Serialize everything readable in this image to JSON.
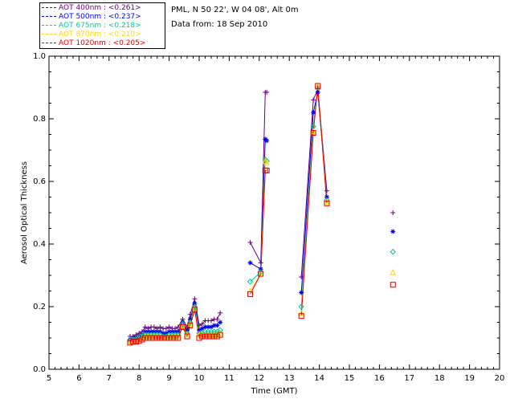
{
  "legend": [
    {
      "label": "AOT  400nm : <0.261>",
      "color": "#6a0080"
    },
    {
      "label": "AOT  500nm : <0.237>",
      "color": "#0000ee"
    },
    {
      "label": "AOT  675nm : <0.218>",
      "color": "#00c8a0"
    },
    {
      "label": "AOT  870nm : <0.210>",
      "color": "#ffd800"
    },
    {
      "label": "AOT 1020nm : <0.205>",
      "color": "#e00000"
    }
  ],
  "info": {
    "location": "PML, N 50 22', W 04 08', Alt 0m",
    "date": "Data from: 18 Sep 2010"
  },
  "chart_data": {
    "type": "line",
    "xlabel": "Time (GMT)",
    "ylabel": "Aerosol Optical Thickness",
    "xlim": [
      5,
      20
    ],
    "ylim": [
      0,
      1.0
    ],
    "xticks": [
      "5",
      "6",
      "7",
      "8",
      "9",
      "10",
      "11",
      "12",
      "13",
      "14",
      "15",
      "16",
      "17",
      "18",
      "19",
      "20"
    ],
    "yticks": [
      "0.0",
      "0.2",
      "0.4",
      "0.6",
      "0.8",
      "1.0"
    ],
    "x": [
      7.7,
      7.8,
      7.9,
      8.0,
      8.1,
      8.2,
      8.3,
      8.4,
      8.5,
      8.6,
      8.7,
      8.8,
      8.9,
      9.0,
      9.1,
      9.2,
      9.3,
      9.45,
      9.6,
      9.7,
      9.85,
      10.0,
      10.1,
      10.2,
      10.3,
      10.4,
      10.5,
      10.6,
      10.7,
      11.7,
      12.05,
      12.2,
      12.25,
      13.4,
      13.8,
      13.95,
      14.25,
      16.45
    ],
    "series": [
      {
        "name": "AOT  400nm",
        "marker": "plus",
        "values": [
          0.105,
          0.105,
          0.11,
          0.115,
          0.12,
          0.135,
          0.13,
          0.135,
          0.135,
          0.13,
          0.135,
          0.13,
          0.13,
          0.135,
          0.13,
          0.13,
          0.135,
          0.16,
          0.135,
          0.175,
          0.225,
          0.14,
          0.145,
          0.155,
          0.155,
          0.155,
          0.16,
          0.16,
          0.18,
          0.405,
          0.34,
          0.885,
          0.885,
          0.295,
          0.86,
          0.895,
          0.57,
          0.5
        ]
      },
      {
        "name": "AOT  500nm",
        "marker": "star",
        "values": [
          0.095,
          0.1,
          0.1,
          0.105,
          0.11,
          0.12,
          0.12,
          0.12,
          0.12,
          0.12,
          0.12,
          0.115,
          0.115,
          0.12,
          0.12,
          0.12,
          0.12,
          0.15,
          0.125,
          0.16,
          0.21,
          0.125,
          0.13,
          0.135,
          0.135,
          0.135,
          0.14,
          0.14,
          0.15,
          0.34,
          0.32,
          0.735,
          0.73,
          0.245,
          0.82,
          0.885,
          0.55,
          0.44
        ]
      },
      {
        "name": "AOT  675nm",
        "marker": "diamond",
        "values": [
          0.09,
          0.095,
          0.095,
          0.1,
          0.105,
          0.11,
          0.11,
          0.11,
          0.11,
          0.11,
          0.11,
          0.105,
          0.105,
          0.11,
          0.11,
          0.11,
          0.11,
          0.145,
          0.115,
          0.15,
          0.2,
          0.115,
          0.115,
          0.12,
          0.12,
          0.12,
          0.12,
          0.12,
          0.125,
          0.28,
          0.31,
          0.67,
          0.665,
          0.2,
          0.775,
          0.9,
          0.54,
          0.375
        ]
      },
      {
        "name": "AOT  870nm",
        "marker": "triangle",
        "values": [
          0.088,
          0.09,
          0.09,
          0.095,
          0.1,
          0.105,
          0.105,
          0.105,
          0.105,
          0.105,
          0.105,
          0.1,
          0.1,
          0.105,
          0.105,
          0.105,
          0.105,
          0.14,
          0.11,
          0.145,
          0.195,
          0.11,
          0.11,
          0.11,
          0.11,
          0.11,
          0.11,
          0.11,
          0.115,
          0.25,
          0.305,
          0.665,
          0.66,
          0.18,
          0.76,
          0.905,
          0.535,
          0.31
        ]
      },
      {
        "name": "AOT 1020nm",
        "marker": "square",
        "values": [
          0.085,
          0.088,
          0.088,
          0.09,
          0.095,
          0.1,
          0.1,
          0.1,
          0.1,
          0.1,
          0.1,
          0.1,
          0.1,
          0.1,
          0.1,
          0.1,
          0.1,
          0.135,
          0.105,
          0.14,
          0.19,
          0.1,
          0.105,
          0.105,
          0.105,
          0.105,
          0.105,
          0.105,
          0.11,
          0.24,
          0.305,
          0.635,
          0.635,
          0.17,
          0.755,
          0.905,
          0.53,
          0.27
        ]
      }
    ]
  }
}
